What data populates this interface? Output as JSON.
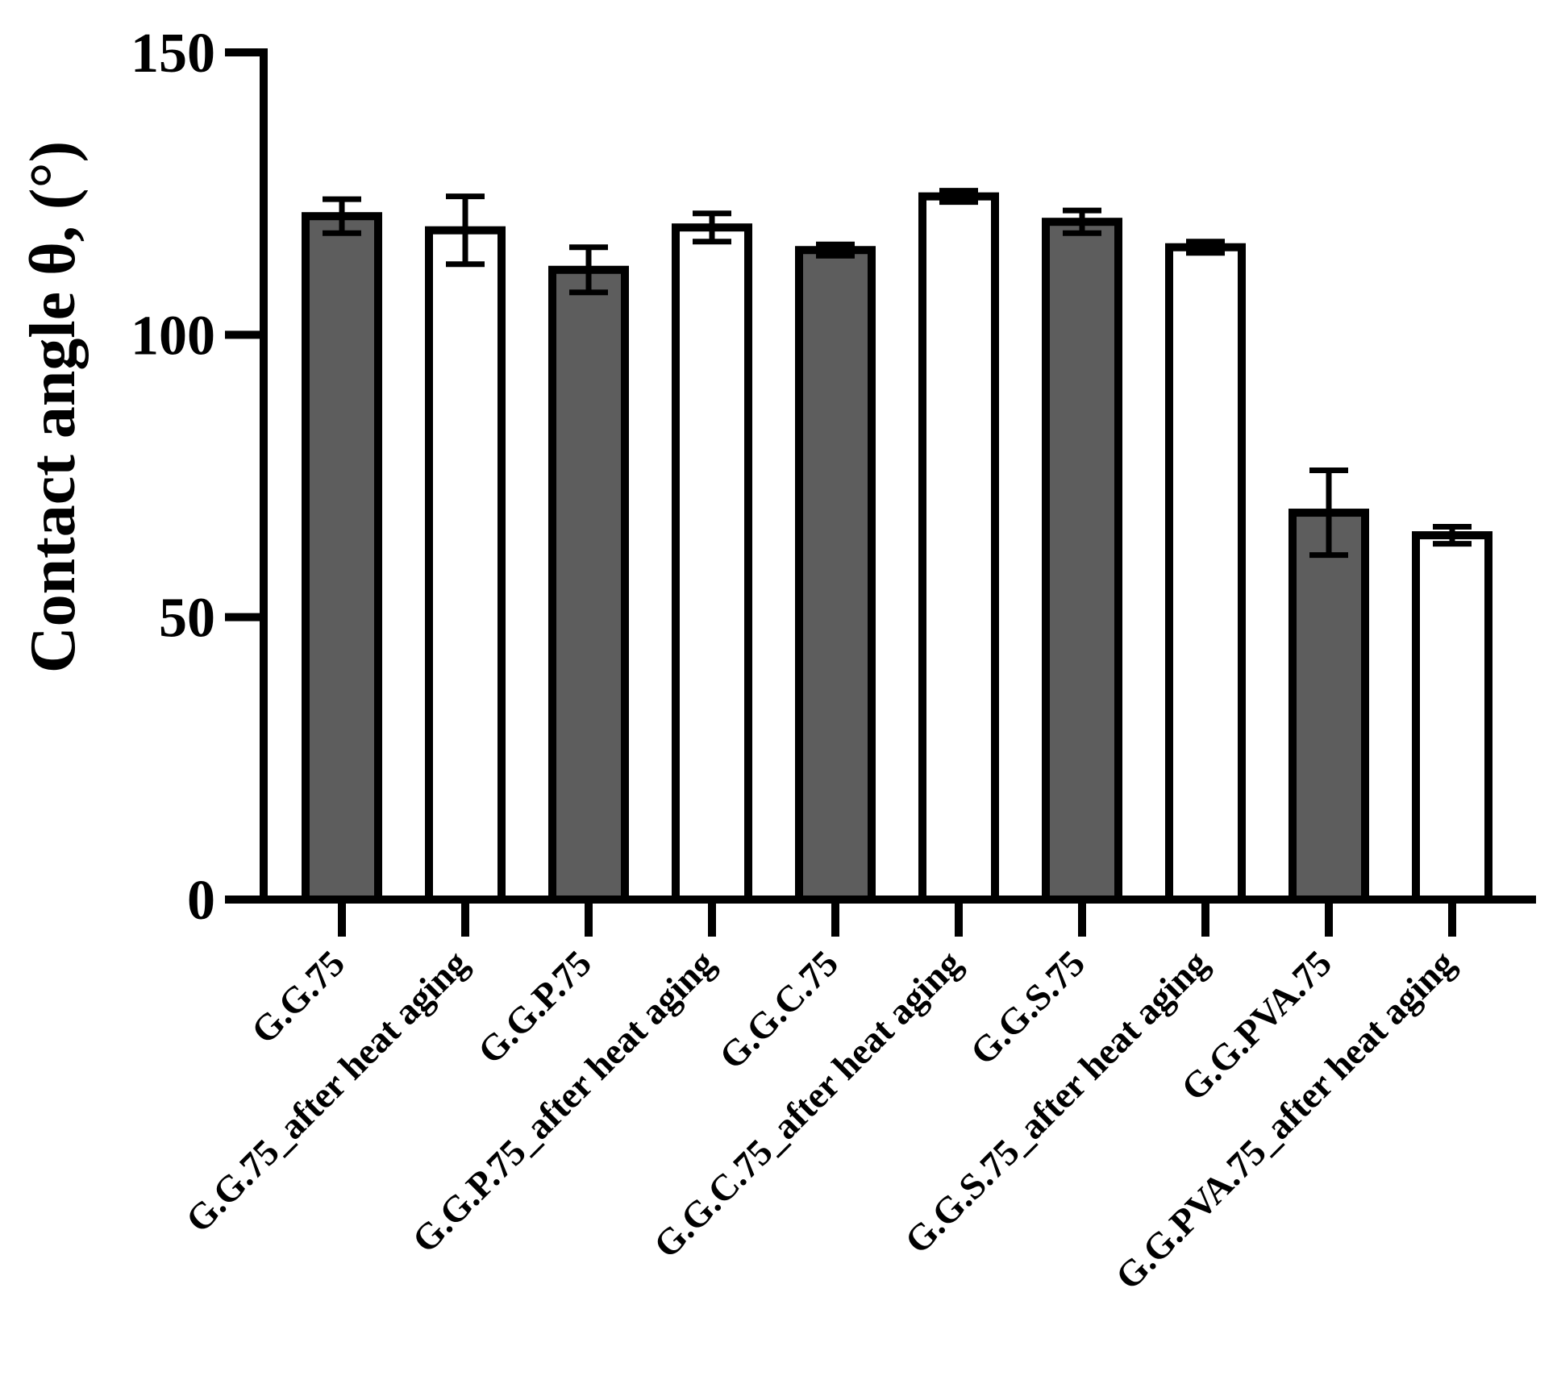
{
  "chart_data": {
    "type": "bar",
    "title": "",
    "xlabel": "",
    "ylabel": "Contact angle θ, (°)",
    "ylim": [
      0,
      150
    ],
    "yticks": [
      0,
      50,
      100,
      150
    ],
    "grid": false,
    "categories": [
      "G.G.75",
      "G.G.75_after heat aging",
      "G.G.P.75",
      "G.G.P.75_after heat aging",
      "G.G.C.75",
      "G.G.C.75_after heat aging",
      "G.G.S.75",
      "G.G.S.75_after heat aging",
      "G.G.PVA.75",
      "G.G.PVA.75_after heat aging"
    ],
    "values": [
      121,
      118.5,
      111.5,
      119,
      115,
      124.5,
      120,
      115.5,
      68.5,
      64.5
    ],
    "errors": [
      3,
      6,
      4,
      2.5,
      1,
      1,
      2,
      1,
      7.5,
      1.5
    ],
    "bar_colors": [
      "#5d5d5d",
      "#ffffff",
      "#5d5d5d",
      "#ffffff",
      "#5d5d5d",
      "#ffffff",
      "#5d5d5d",
      "#ffffff",
      "#5d5d5d",
      "#ffffff"
    ]
  }
}
